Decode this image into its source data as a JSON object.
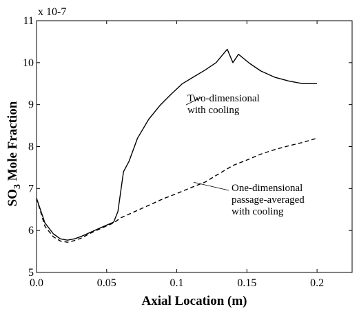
{
  "chart_data": {
    "type": "line",
    "title": "",
    "xlabel": "Axial Location (m)",
    "ylabel_main": "SO",
    "ylabel_sub": "3",
    "ylabel_rest": " Mole Fraction",
    "y_multiplier": "x 10-7",
    "xlim": [
      0,
      0.225
    ],
    "ylim": [
      5,
      11
    ],
    "xticks": [
      0.0,
      0.05,
      0.1,
      0.15,
      0.2
    ],
    "xtick_labels": [
      "0.0",
      "0.05",
      "0.1",
      "0.15",
      "0.2"
    ],
    "yticks": [
      5,
      6,
      7,
      8,
      9,
      10,
      11
    ],
    "ytick_labels": [
      "5",
      "6",
      "7",
      "8",
      "9",
      "10",
      "11"
    ],
    "grid": false,
    "legend": "none",
    "series": [
      {
        "line_style": "solid",
        "color": "#000000",
        "x": [
          0,
          0.006,
          0.012,
          0.017,
          0.022,
          0.027,
          0.032,
          0.04,
          0.048,
          0.055,
          0.058,
          0.062,
          0.066,
          0.072,
          0.08,
          0.088,
          0.096,
          0.104,
          0.112,
          0.12,
          0.128,
          0.136,
          0.14,
          0.144,
          0.152,
          0.16,
          0.17,
          0.18,
          0.19,
          0.2
        ],
        "y": [
          6.77,
          6.18,
          5.92,
          5.8,
          5.77,
          5.8,
          5.86,
          5.98,
          6.1,
          6.2,
          6.45,
          7.4,
          7.65,
          8.2,
          8.65,
          8.98,
          9.25,
          9.5,
          9.66,
          9.82,
          10.0,
          10.32,
          10.0,
          10.2,
          9.98,
          9.8,
          9.65,
          9.56,
          9.5,
          9.5
        ]
      },
      {
        "line_style": "dashed",
        "color": "#000000",
        "x": [
          0,
          0.006,
          0.012,
          0.017,
          0.022,
          0.027,
          0.032,
          0.04,
          0.048,
          0.055,
          0.06,
          0.07,
          0.08,
          0.09,
          0.1,
          0.11,
          0.12,
          0.13,
          0.14,
          0.15,
          0.16,
          0.17,
          0.18,
          0.19,
          0.2
        ],
        "y": [
          6.77,
          6.1,
          5.85,
          5.75,
          5.72,
          5.76,
          5.82,
          5.96,
          6.08,
          6.18,
          6.3,
          6.45,
          6.6,
          6.75,
          6.88,
          7.02,
          7.15,
          7.35,
          7.55,
          7.68,
          7.82,
          7.93,
          8.02,
          8.1,
          8.2
        ]
      }
    ],
    "annotations": [
      {
        "lines": [
          "Two-dimensional",
          "with cooling"
        ],
        "pointer_to": [
          0.118,
          9.18
        ]
      },
      {
        "lines": [
          "One-dimensional",
          "passage-averaged",
          "with cooling"
        ],
        "pointer_to": [
          0.112,
          7.15
        ]
      }
    ]
  }
}
